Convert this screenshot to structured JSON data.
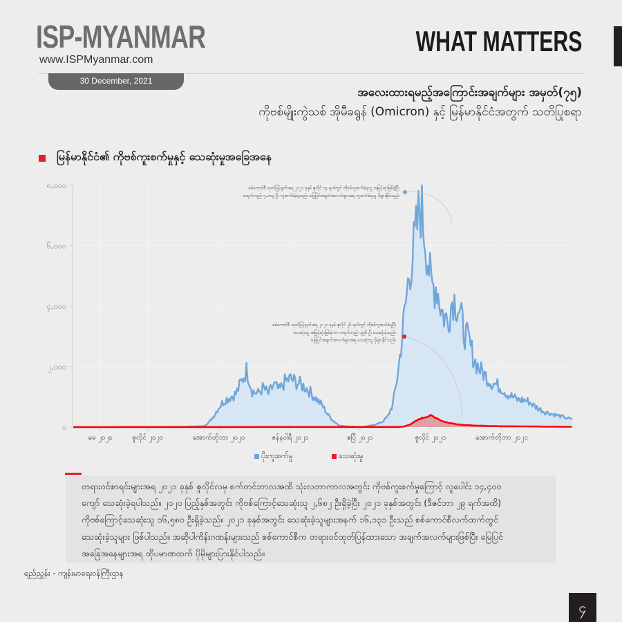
{
  "header": {
    "logo": "ISP-MYANMAR",
    "url": "www.ISPMyanmar.com",
    "date": "30 December, 2021",
    "series_name": "WHAT MATTERS"
  },
  "title": {
    "line1": "အလေးထားရမည့်အကြောင်းအချက်များ အမှတ်(၇၅)",
    "line2": "ကိုဗစ်မျိုးကွဲသစ် အိုမီခရွန် (Omicron) နှင့် မြန်မာနိုင်ငံအတွက် သတိပြုစရာ"
  },
  "section": {
    "title": "မြန်မာနိုင်ငံ၏ ကိုဗစ်ကူးစက်မှုနှင့် သေဆုံးမှုအခြေအနေ"
  },
  "colors": {
    "accent": "#e31e24",
    "cases_line": "#6fa6da",
    "cases_fill": "#d6e6f5",
    "deaths_line": "#ff0000",
    "deaths_fill": "#dca0a8"
  },
  "chart_data": {
    "type": "area",
    "title": "မြန်မာနိုင်ငံ၏ ကိုဗစ်ကူးစက်မှုနှင့် သေဆုံးမှုအခြေအနေ",
    "xlabel": "",
    "ylabel": "",
    "ylim": [
      0,
      8000
    ],
    "grid": true,
    "legend_position": "bottom-center",
    "yticks": [
      {
        "value": 8000,
        "label": "၈,၀၀၀"
      },
      {
        "value": 6000,
        "label": "၆,၀၀၀"
      },
      {
        "value": 4000,
        "label": "၄,၀၀၀"
      },
      {
        "value": 2000,
        "label": "၂,၀၀၀"
      },
      {
        "value": 0,
        "label": "၀"
      }
    ],
    "xticks": [
      {
        "day": 35,
        "label": "မေ ၂၀၂၀"
      },
      {
        "day": 96,
        "label": "ဇူလိုင် ၂၀၂၀"
      },
      {
        "day": 188,
        "label": "အောက်တိုဘာ ၂၀၂၀"
      },
      {
        "day": 280,
        "label": "ဇန်နဝါရီ ၂၀၂၁"
      },
      {
        "day": 370,
        "label": "ဧပြီ ၂၀၂၁"
      },
      {
        "day": 461,
        "label": "ဇူလိုင် ၂၀၂၁"
      },
      {
        "day": 553,
        "label": "အောက်တိုဘာ ၂၀၂၁"
      }
    ],
    "x_unit": "days since 27 Mar 2020 (weekly samples)",
    "series": [
      {
        "name": "ပိုးကူးစက်မှု",
        "x": [
          0,
          70,
          140,
          168,
          175,
          182,
          189,
          196,
          203,
          210,
          217,
          224,
          231,
          238,
          245,
          252,
          259,
          266,
          273,
          280,
          287,
          294,
          301,
          308,
          315,
          322,
          329,
          336,
          343,
          350,
          357,
          364,
          371,
          378,
          385,
          392,
          399,
          406,
          413,
          420,
          427,
          434,
          441,
          448,
          455,
          462,
          469,
          476,
          483,
          490,
          497,
          504,
          511,
          518,
          525,
          532,
          539,
          546,
          553,
          560,
          567,
          574,
          581,
          588,
          595,
          602,
          609,
          616,
          623,
          630,
          637,
          644
        ],
        "values": [
          0,
          5,
          10,
          30,
          150,
          400,
          700,
          900,
          1000,
          1100,
          1500,
          1900,
          1200,
          1100,
          1300,
          1100,
          1400,
          1200,
          1500,
          1600,
          1500,
          1400,
          1300,
          1100,
          900,
          700,
          400,
          200,
          60,
          30,
          20,
          15,
          10,
          20,
          60,
          100,
          180,
          350,
          800,
          2000,
          3600,
          5200,
          6100,
          7400,
          6200,
          4600,
          4700,
          3800,
          3500,
          4300,
          4000,
          3200,
          2800,
          2200,
          1900,
          1700,
          1500,
          1400,
          1300,
          1100,
          1000,
          900,
          900,
          850,
          700,
          600,
          500,
          450,
          400,
          350,
          300,
          250
        ],
        "peak_annotation": "စစ်ကောင်စီ ထုတ်ပြန်ချက်အရ ၂၀၂၁ ခုနှစ် ဇူလိုင် ၁၄ ရက်တွင် ကိုဗစ်ကူးစက်ခံရသူ အမြင့်ဆုံးဖြစ်ခဲ့ပြီး တရက်တည်း ၇,၀၈၃ ဦး ကူးစက်ခံခဲ့ရသည်။ မြေပြင်အချက်အလက်များအရ ကူးစက်ခံရသူ ပိုများနိုင်သည်။"
      },
      {
        "name": "သေဆုံးမှု",
        "x": [
          0,
          140,
          420,
          427,
          434,
          441,
          448,
          455,
          462,
          469,
          476,
          483,
          490,
          497,
          504,
          518,
          546,
          644
        ],
        "values": [
          0,
          3,
          5,
          20,
          80,
          180,
          280,
          340,
          380,
          300,
          200,
          150,
          120,
          90,
          70,
          50,
          30,
          10
        ],
        "peak_annotation": "စစ်ကောင်စီ ထုတ်ပြန်ချက်အရ ၂၀၂၁ ခုနှစ် ဇူလိုင် ၂၆ ရက်တွင် ကိုဗစ်ကူးစက်ခံရပြီး သေဆုံးသူ အမြင့်ဆုံးဖြစ်ခဲ့ကာ တရက်တည်း ၃၉၆ ဦး သေဆုံးခဲ့သည်။ မြေပြင်အချက်အလက်များအရ သေဆုံးသူ ပိုများနိုင်သည်။"
      }
    ]
  },
  "annotations": {
    "cases_l1": "စစ်ကောင်စီ ထုတ်ပြန်ချက်အရ ၂၀၂၁ ခုနှစ် ဇူလိုင် ၁၄ ရက်တွင် ကိုဗစ်ကူးစက်ခံရသူ အမြင့်ဆုံးဖြစ်ခဲ့ပြီး",
    "cases_l2": "တရက်တည်း ၇,၀၈၃ ဦး ကူးစက်ခံခဲ့ရသည်။ မြေပြင်အချက်အလက်များအရ ကူးစက်ခံရသူ ပိုများနိုင်သည်။",
    "deaths_l1": "စစ်ကောင်စီ ထုတ်ပြန်ချက်အရ ၂၀၂၁ ခုနှစ် ဇူလိုင် ၂၆ ရက်တွင် ကိုဗစ်ကူးစက်ခံရပြီး",
    "deaths_l2": "သေဆုံးသူ အမြင့်ဆုံးဖြစ်ခဲ့ကာ တရက်တည်း ၃၉၆ ဦး သေဆုံးခဲ့သည်။",
    "deaths_l3": "မြေပြင်အချက်အလက်များအရ သေဆုံးသူ ပိုများနိုင်သည်။"
  },
  "legend": {
    "cases": "ပိုးကူးစက်မှု",
    "deaths": "သေဆုံးမှု"
  },
  "narrative": {
    "l1": "တရားဝင်စာရင်းများအရ ၂၀၂၁ ခုနှစ် ဇူလိုင်လမှ စက်တင်ဘာလအထိ သုံးလတာကာလအတွင်း ကိုဗစ်ကူးစက်မှုကြောင့် လူပေါင်း ၁၄,၄၀၀",
    "l2": "ကျော် သေဆုံးခဲ့ရပါသည်။ ၂၀၂၀ ပြည့်နှစ်အတွင်း ကိုဗစ်ကြောင့်သေဆုံးသူ ၂,၆၈၂ ဦးရှိခဲ့ပြီး ၂၀၂၁ ခုနှစ်အတွင်း (ဒီဇင်ဘာ ၂၉ ရက်အထိ)",
    "l3": "ကိုဗစ်ကြောင့်သေဆုံးသူ ၁၆,၅၈၀ ဦးရှိခဲ့သည်။ ၂၀၂၁ ခုနှစ်အတွင်း သေဆုံးခဲ့သူများအနက် ၁၆,၁၃၁ ဦးသည် စစ်ကောင်စီလက်ထက်တွင်",
    "l4": "သေဆုံးခဲ့သူများ ဖြစ်ပါသည်။ အဆိုပါကိန်းဂဏန်းများသည် စစ်ကောင်စီက တရားဝင်ထုတ်ပြန်ထားသော အချက်အလက်များဖြစ်ပြီး မြေပြင်",
    "l5": "အခြေအနေများအရ ထိုပမာဏထက် ပိုမိုများပြားနိုင်ပါသည်။"
  },
  "source": "ရည်ညွှန်း - ကျန်းမာရေးဝန်ကြီးဌာန",
  "page_number": "၄"
}
